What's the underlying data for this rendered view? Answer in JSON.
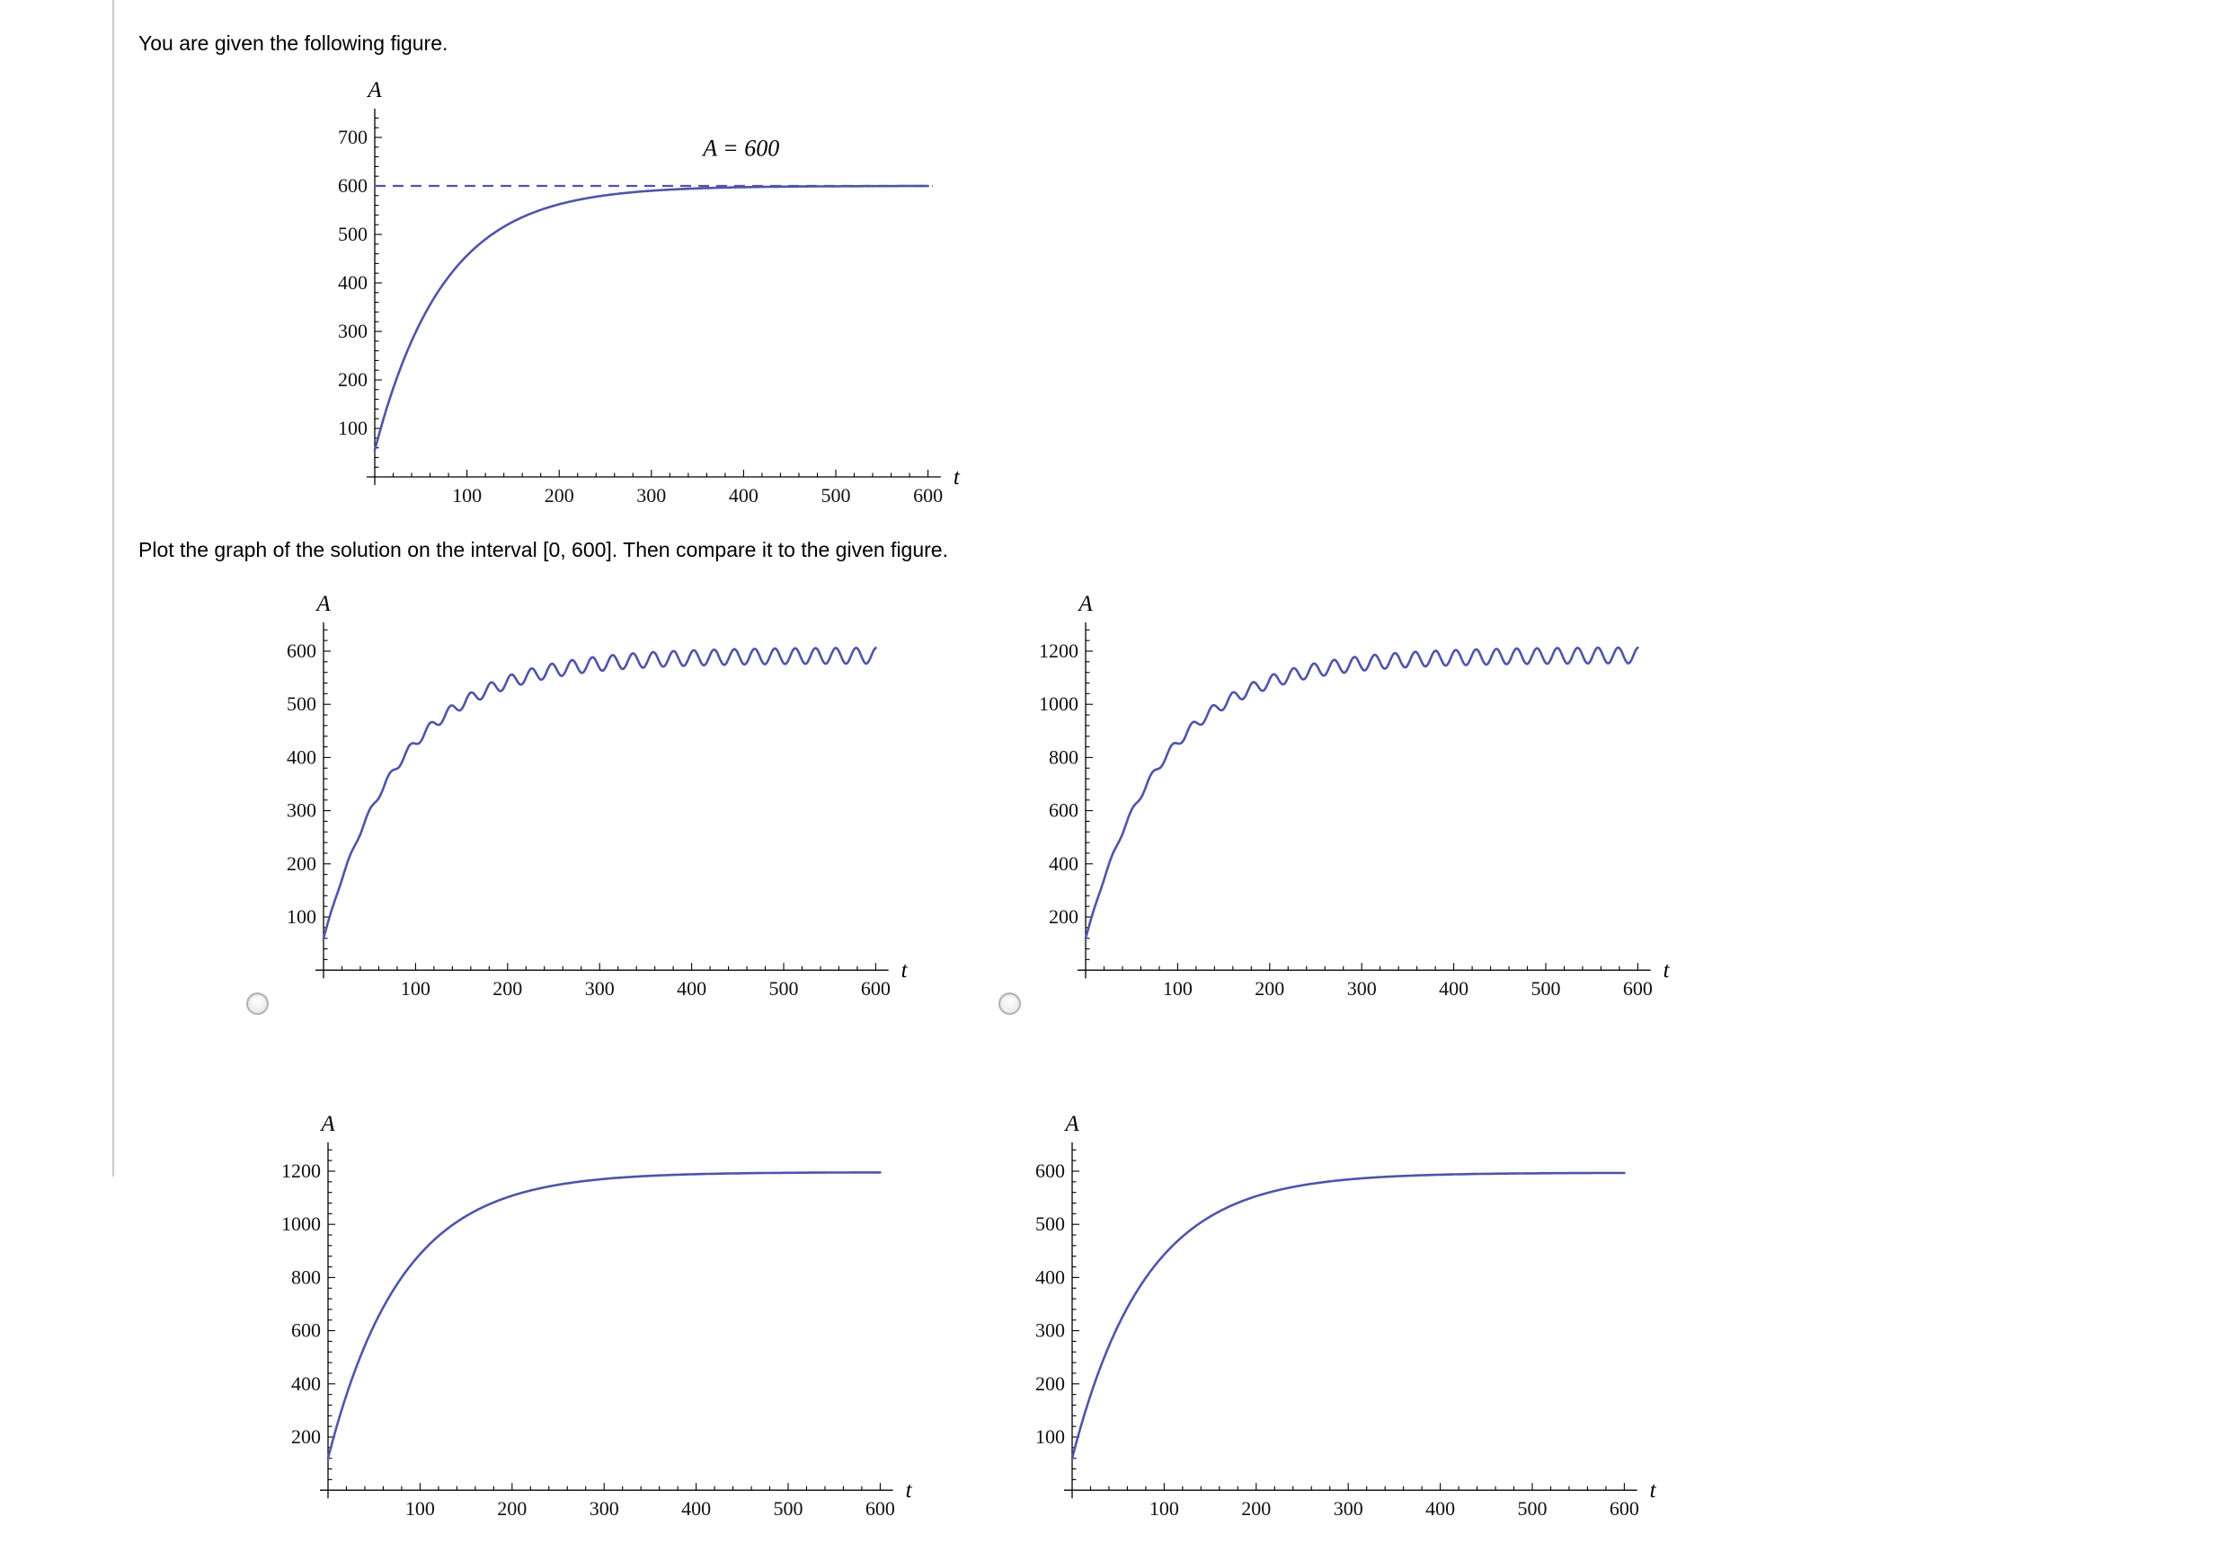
{
  "page": {
    "prompt_intro": "You are given the following figure.",
    "prompt_instruction": "Plot the graph of the solution on the interval [0, 600]. Then compare it to the given figure.",
    "curve_color": "#4e55a8",
    "axis_color": "#000000",
    "background": "#ffffff"
  },
  "options": [
    {
      "id": "option-1",
      "selected": false
    },
    {
      "id": "option-2",
      "selected": false
    }
  ],
  "chart_data": [
    {
      "id": "given",
      "type": "line",
      "role": "given-figure",
      "title": "",
      "xlabel": "t",
      "ylabel": "A",
      "xticks": [
        100,
        200,
        300,
        400,
        500,
        600
      ],
      "yticks": [
        100,
        200,
        300,
        400,
        500,
        600,
        700
      ],
      "xlim": [
        0,
        610
      ],
      "ylim": [
        0,
        760
      ],
      "grid": false,
      "legend": "none",
      "series": [
        {
          "name": "A(t)",
          "model": "exponential-approach",
          "asymptote": 600,
          "start": 55,
          "tau": 75,
          "ripple_amp": 0,
          "ripple_omega": 0,
          "ripple_ramp": 0
        }
      ],
      "asymptote_line": {
        "value": 600,
        "style": "dashed",
        "label": "A = 600",
        "label_t": 356,
        "label_A": 662
      }
    },
    {
      "id": "option-1",
      "type": "line",
      "role": "answer-choice",
      "title": "",
      "xlabel": "t",
      "ylabel": "A",
      "xticks": [
        100,
        200,
        300,
        400,
        500,
        600
      ],
      "yticks": [
        100,
        200,
        300,
        400,
        500,
        600
      ],
      "xlim": [
        0,
        610
      ],
      "ylim": [
        0,
        660
      ],
      "grid": false,
      "legend": "none",
      "series": [
        {
          "name": "A(t)",
          "model": "exponential-approach-with-oscillation",
          "asymptote": 592,
          "start": 60,
          "tau": 85,
          "ripple_amp": 15,
          "ripple_omega": 0.285,
          "ripple_ramp": 120
        }
      ]
    },
    {
      "id": "option-2",
      "type": "line",
      "role": "answer-choice",
      "title": "",
      "xlabel": "t",
      "ylabel": "A",
      "xticks": [
        100,
        200,
        300,
        400,
        500,
        600
      ],
      "yticks": [
        200,
        400,
        600,
        800,
        1000,
        1200
      ],
      "xlim": [
        0,
        610
      ],
      "ylim": [
        0,
        1320
      ],
      "grid": false,
      "legend": "none",
      "series": [
        {
          "name": "A(t)",
          "model": "exponential-approach-with-oscillation",
          "asymptote": 1185,
          "start": 120,
          "tau": 85,
          "ripple_amp": 30,
          "ripple_omega": 0.285,
          "ripple_ramp": 120
        }
      ]
    },
    {
      "id": "option-3",
      "type": "line",
      "role": "answer-choice-partially-visible",
      "title": "",
      "xlabel": "t",
      "ylabel": "A",
      "xticks": [
        100,
        200,
        300,
        400,
        500,
        600
      ],
      "yticks": [
        200,
        400,
        600,
        800,
        1000,
        1200
      ],
      "xlim": [
        0,
        610
      ],
      "ylim": [
        0,
        1320
      ],
      "grid": false,
      "legend": "none",
      "series": [
        {
          "name": "A(t)",
          "model": "exponential-approach",
          "asymptote": 1196,
          "start": 120,
          "tau": 80,
          "ripple_amp": 0,
          "ripple_omega": 0,
          "ripple_ramp": 0
        }
      ]
    },
    {
      "id": "option-4",
      "type": "line",
      "role": "answer-choice-partially-visible",
      "title": "",
      "xlabel": "t",
      "ylabel": "A",
      "xticks": [
        100,
        200,
        300,
        400,
        500,
        600
      ],
      "yticks": [
        100,
        200,
        300,
        400,
        500,
        600
      ],
      "xlim": [
        0,
        610
      ],
      "ylim": [
        0,
        660
      ],
      "grid": false,
      "legend": "none",
      "series": [
        {
          "name": "A(t)",
          "model": "exponential-approach",
          "asymptote": 597,
          "start": 60,
          "tau": 80,
          "ripple_amp": 0,
          "ripple_omega": 0,
          "ripple_ramp": 0
        }
      ]
    }
  ]
}
